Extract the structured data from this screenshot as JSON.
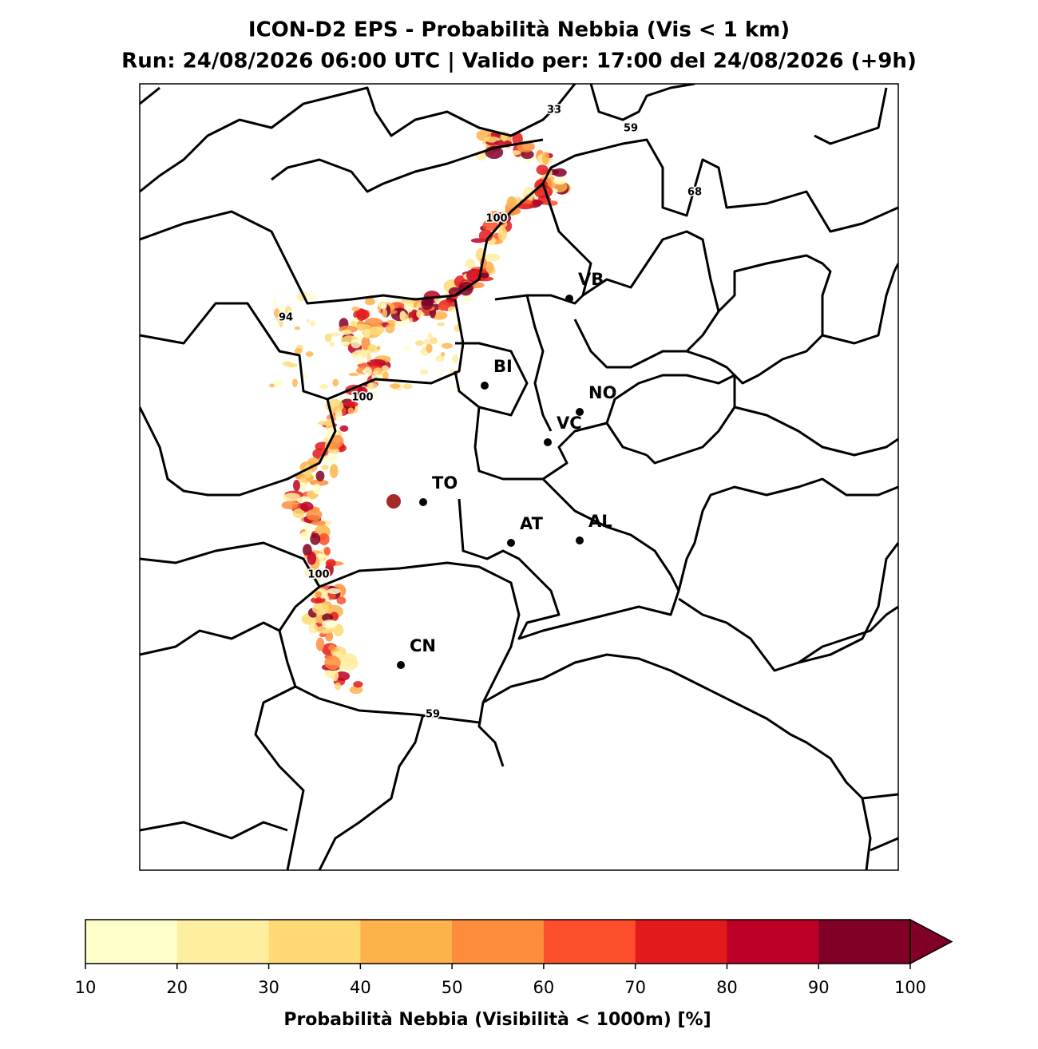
{
  "header": {
    "title": "ICON-D2 EPS - Probabilità Nebbia (Vis < 1 km)",
    "subtitle": "Run: 24/08/2026 06:00 UTC | Valido per: 17:00 del 24/08/2026 (+9h)"
  },
  "map": {
    "cities": [
      {
        "label": "VB"
      },
      {
        "label": "BI"
      },
      {
        "label": "NO"
      },
      {
        "label": "VC"
      },
      {
        "label": "TO"
      },
      {
        "label": "AT"
      },
      {
        "label": "AL"
      },
      {
        "label": "CN"
      }
    ],
    "contour_labels": [
      "33",
      "59",
      "68",
      "100",
      "94",
      "100",
      "100",
      "59"
    ]
  },
  "colorbar": {
    "label": "Probabilità Nebbia (Visibilità < 1000m) [%]",
    "ticks": [
      "10",
      "20",
      "30",
      "40",
      "50",
      "60",
      "70",
      "80",
      "90",
      "100"
    ],
    "colors": [
      "#ffffcc",
      "#ffeda0",
      "#fed976",
      "#feb24c",
      "#fd8d3c",
      "#fc4e2a",
      "#e31a1c",
      "#bd0026",
      "#800026"
    ],
    "extend": "max"
  }
}
